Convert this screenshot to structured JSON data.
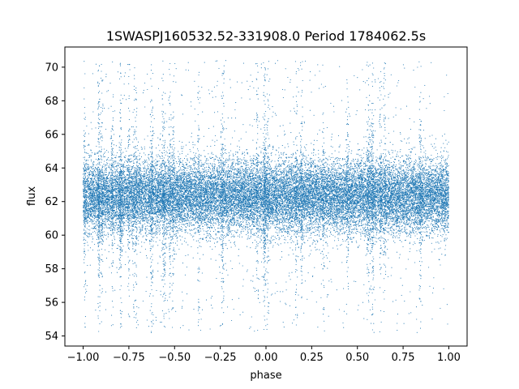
{
  "chart_data": {
    "type": "scatter",
    "title": "1SWASPJ160532.52-331908.0 Period 1784062.5s",
    "xlabel": "phase",
    "ylabel": "flux",
    "xlim": [
      -1.1,
      1.1
    ],
    "ylim": [
      53.4,
      71.2
    ],
    "xticks": [
      -1.0,
      -0.75,
      -0.5,
      -0.25,
      0.0,
      0.25,
      0.5,
      0.75,
      1.0
    ],
    "xtick_labels": [
      "−1.00",
      "−0.75",
      "−0.50",
      "−0.25",
      "0.00",
      "0.25",
      "0.50",
      "0.75",
      "1.00"
    ],
    "yticks": [
      54,
      56,
      58,
      60,
      62,
      64,
      66,
      68,
      70
    ],
    "ytick_labels": [
      "54",
      "56",
      "58",
      "60",
      "62",
      "64",
      "66",
      "68",
      "70"
    ],
    "grid": false,
    "legend": "none",
    "marker_color": "#1f77b4",
    "series": [
      {
        "x_range": [
          -1.0,
          1.0
        ],
        "median_flux": 62.3,
        "core_band": [
          60.5,
          64.0
        ],
        "flux_extent": [
          54.2,
          70.4
        ],
        "n_points": 30000
      }
    ]
  }
}
